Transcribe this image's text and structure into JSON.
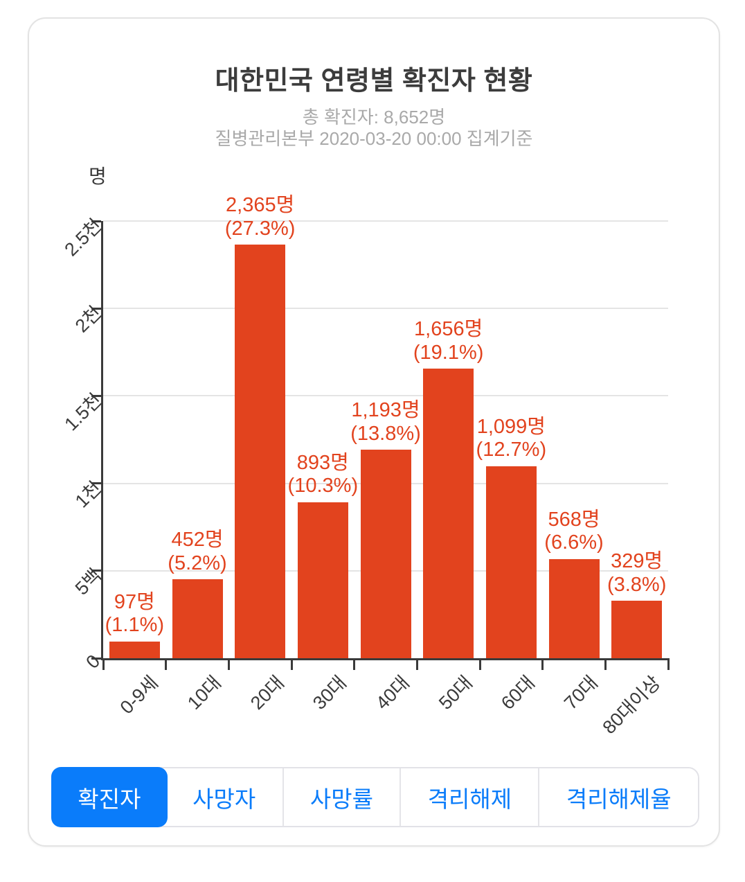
{
  "title": "대한민국 연령별 확진자 현황",
  "subtitle": {
    "line1": "총 확진자: 8,652명",
    "line2": "질병관리본부 2020-03-20 00:00 집계기준"
  },
  "chart_data": {
    "type": "bar",
    "title": "대한민국 연령별 확진자 현황",
    "subtitle_total": "총 확진자: 8,652명",
    "subtitle_source": "질병관리본부 2020-03-20 00:00 집계기준",
    "ylabel": "명",
    "xlabel": "",
    "ylim": [
      0,
      2500
    ],
    "grid": true,
    "categories": [
      "0-9세",
      "10대",
      "20대",
      "30대",
      "40대",
      "50대",
      "60대",
      "70대",
      "80대이상"
    ],
    "values": [
      97,
      452,
      2365,
      893,
      1193,
      1656,
      1099,
      568,
      329
    ],
    "data_labels": [
      [
        "97명",
        "(1.1%)"
      ],
      [
        "452명",
        "(5.2%)"
      ],
      [
        "2,365명",
        "(27.3%)"
      ],
      [
        "893명",
        "(10.3%)"
      ],
      [
        "1,193명",
        "(13.8%)"
      ],
      [
        "1,656명",
        "(19.1%)"
      ],
      [
        "1,099명",
        "(12.7%)"
      ],
      [
        "568명",
        "(6.6%)"
      ],
      [
        "329명",
        "(3.8%)"
      ]
    ],
    "yticks": [
      {
        "value": 0,
        "label": "0"
      },
      {
        "value": 500,
        "label": "5백"
      },
      {
        "value": 1000,
        "label": "1천"
      },
      {
        "value": 1500,
        "label": "1.5천"
      },
      {
        "value": 2000,
        "label": "2천"
      },
      {
        "value": 2500,
        "label": "2.5천"
      }
    ]
  },
  "tabs": [
    {
      "label": "확진자",
      "name": "tab-confirmed",
      "active": true
    },
    {
      "label": "사망자",
      "name": "tab-deaths",
      "active": false
    },
    {
      "label": "사망률",
      "name": "tab-death-rate",
      "active": false
    },
    {
      "label": "격리해제",
      "name": "tab-released",
      "active": false
    },
    {
      "label": "격리해제율",
      "name": "tab-release-rate",
      "active": false
    }
  ],
  "colors": {
    "bar": "#e2431e",
    "bar_label": "#e2431e",
    "accent_blue": "#0a7cfa",
    "active_tab_text": "#ffffff",
    "grid": "#e4e4e4",
    "axis": "#3a3a3a",
    "title_text": "#3c3c3c",
    "subtitle_text": "#a9a9a9"
  }
}
